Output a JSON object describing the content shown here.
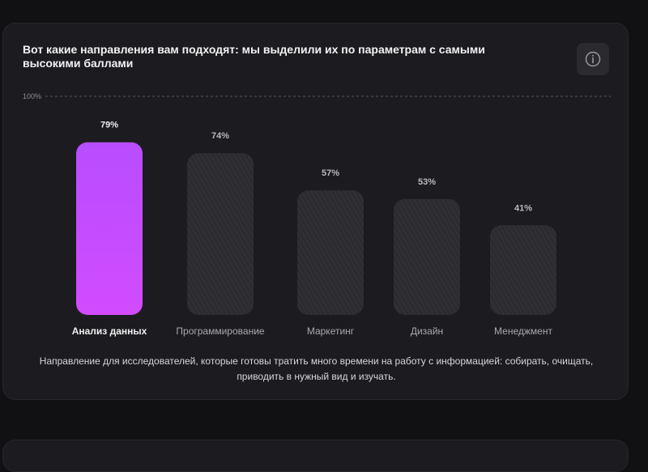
{
  "card": {
    "title": "Вот какие направления вам подходят: мы выделили их по параметрам с самыми высокими баллами",
    "info_icon": "info-circle-icon",
    "description": "Направление для исследователей, которые готовы тратить много времени на работу с информацией: собирать, очищать, приводить в нужный вид и изучать."
  },
  "chart_data": {
    "type": "bar",
    "categories": [
      "Анализ данных",
      "Программирование",
      "Маркетинг",
      "Дизайн",
      "Менеджмент"
    ],
    "values": [
      79,
      74,
      57,
      53,
      41
    ],
    "value_labels": [
      "79%",
      "74%",
      "57%",
      "53%",
      "41%"
    ],
    "ylim": [
      0,
      100
    ],
    "ref_line_label": "100%",
    "highlight_index": 0,
    "colors": {
      "highlight_top": "#b84dff",
      "highlight_bottom": "#d24bff",
      "bar": "#2c2c30",
      "bar_hatch": "#34343a",
      "ref_line": "#55555c"
    }
  }
}
